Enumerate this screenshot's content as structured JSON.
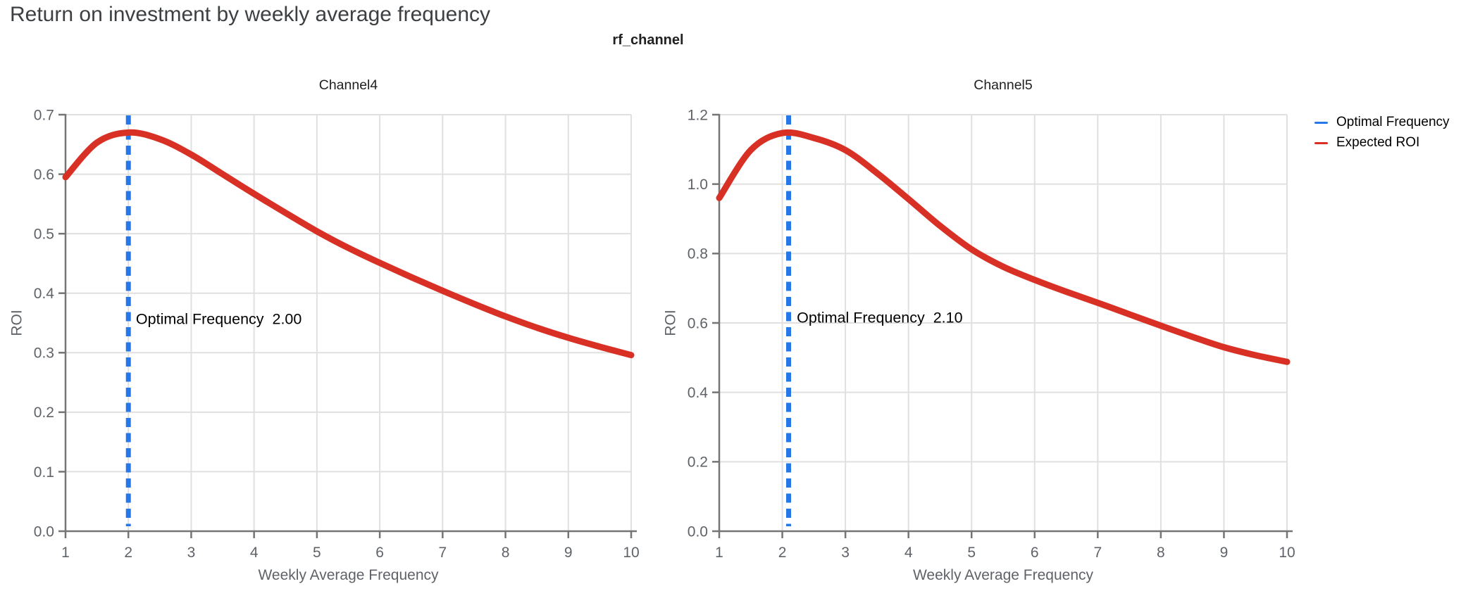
{
  "page": {
    "title": "Return on investment by weekly average frequency"
  },
  "figure": {
    "title": "rf_channel"
  },
  "colors": {
    "page_title": "#3c4043",
    "subplot_title": "#212121",
    "tick_label": "#5f6368",
    "axis_title": "#5f6368",
    "spine": "#757575",
    "grid": "#e0e0e0",
    "optimal_line": "#2678e8",
    "roi_line": "#d93025",
    "annotation_text": "#000000"
  },
  "legend": {
    "position": "top-right",
    "items": [
      {
        "label": "Optimal Frequency",
        "color": "#2678e8"
      },
      {
        "label": "Expected ROI",
        "color": "#d93025"
      }
    ]
  },
  "chart_data": [
    {
      "type": "line",
      "title": "Channel4",
      "xlabel": "Weekly Average Frequency",
      "ylabel": "ROI",
      "xlim": [
        1,
        10
      ],
      "ylim": [
        0.0,
        0.7
      ],
      "grid": true,
      "xticks": [
        1,
        2,
        3,
        4,
        5,
        6,
        7,
        8,
        9,
        10
      ],
      "yticks": [
        0.0,
        0.1,
        0.2,
        0.3,
        0.4,
        0.5,
        0.6,
        0.7
      ],
      "ytick_decimals": 1,
      "optimal_frequency": 2.0,
      "annotation": {
        "text": "Optimal Frequency  2.00",
        "x": 2.12,
        "y": 0.357
      },
      "series": [
        {
          "name": "Optimal Frequency",
          "type": "vline",
          "x": 2.0,
          "dash": true
        },
        {
          "name": "Expected ROI",
          "type": "curve",
          "x": [
            1,
            1.5,
            2,
            2.5,
            3,
            3.5,
            4,
            4.5,
            5,
            5.5,
            6,
            6.5,
            7,
            7.5,
            8,
            8.5,
            9,
            9.5,
            10
          ],
          "y": [
            0.595,
            0.653,
            0.67,
            0.659,
            0.633,
            0.6,
            0.567,
            0.535,
            0.504,
            0.476,
            0.451,
            0.427,
            0.404,
            0.382,
            0.361,
            0.342,
            0.325,
            0.31,
            0.296
          ]
        }
      ]
    },
    {
      "type": "line",
      "title": "Channel5",
      "xlabel": "Weekly Average Frequency",
      "ylabel": "ROI",
      "xlim": [
        1,
        10
      ],
      "ylim": [
        0.0,
        1.2
      ],
      "grid": true,
      "xticks": [
        1,
        2,
        3,
        4,
        5,
        6,
        7,
        8,
        9,
        10
      ],
      "yticks": [
        0.0,
        0.2,
        0.4,
        0.6,
        0.8,
        1.0,
        1.2
      ],
      "ytick_decimals": 1,
      "optimal_frequency": 2.1,
      "annotation": {
        "text": "Optimal Frequency  2.10",
        "x": 2.23,
        "y": 0.616
      },
      "series": [
        {
          "name": "Optimal Frequency",
          "type": "vline",
          "x": 2.1,
          "dash": true
        },
        {
          "name": "Expected ROI",
          "type": "curve",
          "x": [
            1,
            1.5,
            2,
            2.5,
            3,
            3.5,
            4,
            4.5,
            5,
            5.5,
            6,
            6.5,
            7,
            7.5,
            8,
            8.5,
            9,
            9.5,
            10
          ],
          "y": [
            0.96,
            1.098,
            1.147,
            1.133,
            1.098,
            1.032,
            0.957,
            0.88,
            0.812,
            0.762,
            0.724,
            0.69,
            0.658,
            0.625,
            0.592,
            0.56,
            0.53,
            0.507,
            0.488
          ]
        }
      ]
    }
  ]
}
